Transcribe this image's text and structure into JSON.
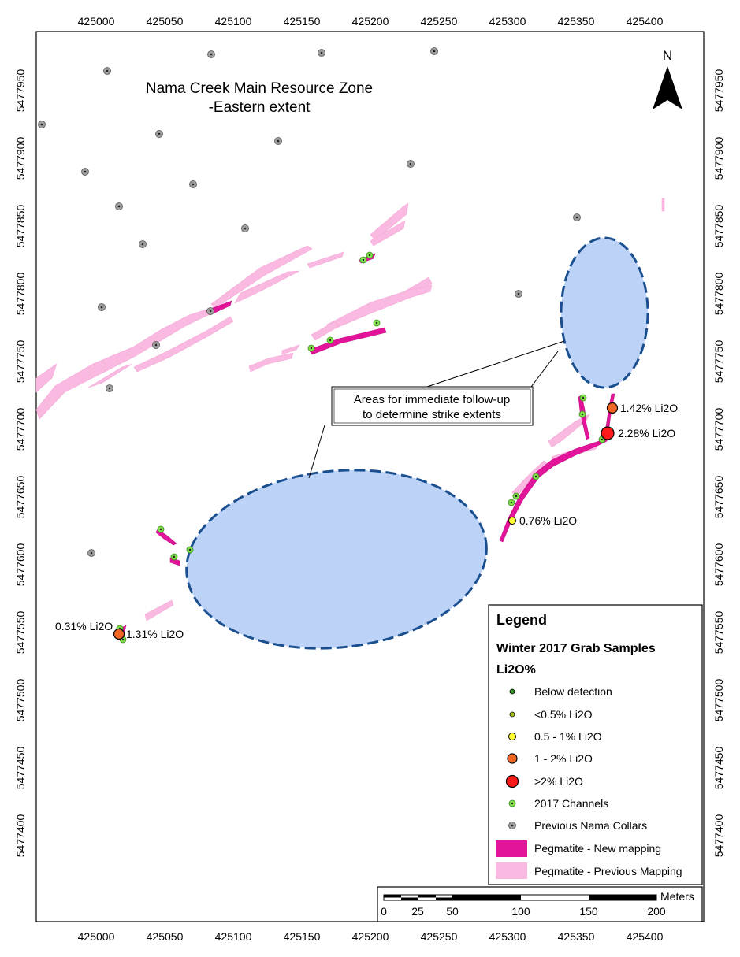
{
  "title": {
    "line1": "Nama Creek Main Resource Zone",
    "line2": "-Eastern extent"
  },
  "north_arrow": {
    "label": "N"
  },
  "grid": {
    "x_ticks": [
      "425000",
      "425050",
      "425100",
      "425150",
      "425200",
      "425250",
      "425300",
      "425350",
      "425400"
    ],
    "y_ticks": [
      "5477950",
      "5477900",
      "5477850",
      "5477800",
      "5477750",
      "5477700",
      "5477650",
      "5477600",
      "5477550",
      "5477500",
      "5477450",
      "5477400"
    ]
  },
  "callout": {
    "line1": "Areas for immediate follow-up",
    "line2": "to determine strike extents"
  },
  "sample_labels": [
    {
      "text": "1.42% Li2O"
    },
    {
      "text": "2.28% Li2O"
    },
    {
      "text": "0.76% Li2O"
    },
    {
      "text": "0.31% Li2O"
    },
    {
      "text": "1.31% Li2O"
    }
  ],
  "legend": {
    "title": "Legend",
    "subtitle": "Winter 2017 Grab Samples",
    "field": "Li2O%",
    "items": [
      {
        "label": "Below detection",
        "color": "#2e8b1e",
        "symbol": "dot"
      },
      {
        "label": "<0.5% Li2O",
        "color": "#a9c81e",
        "symbol": "dot"
      },
      {
        "label": "0.5 - 1% Li2O",
        "color": "#ffff33",
        "symbol": "dot"
      },
      {
        "label": "1 - 2% Li2O",
        "color": "#f26522",
        "symbol": "dot"
      },
      {
        "label": ">2% Li2O",
        "color": "#ff1a1a",
        "symbol": "dot"
      },
      {
        "label": "2017 Channels",
        "color": "#7ee04a",
        "symbol": "channel"
      },
      {
        "label": "Previous Nama Collars",
        "color": "#9e9e9e",
        "symbol": "collar"
      },
      {
        "label": "Pegmatite - New mapping",
        "color": "#e2159a",
        "symbol": "patch"
      },
      {
        "label": "Pegmatite - Previous Mapping",
        "color": "#f9b9e1",
        "symbol": "patch"
      }
    ]
  },
  "scale_bar": {
    "unit": "Meters",
    "labels": [
      "0",
      "25",
      "50",
      "100",
      "150",
      "200"
    ]
  },
  "colors": {
    "follow_up_fill": "#bcd2f7",
    "follow_up_stroke": "#1a4f8f",
    "pegmatite_new": "#e2159a",
    "pegmatite_previous": "#f9b9e1"
  }
}
